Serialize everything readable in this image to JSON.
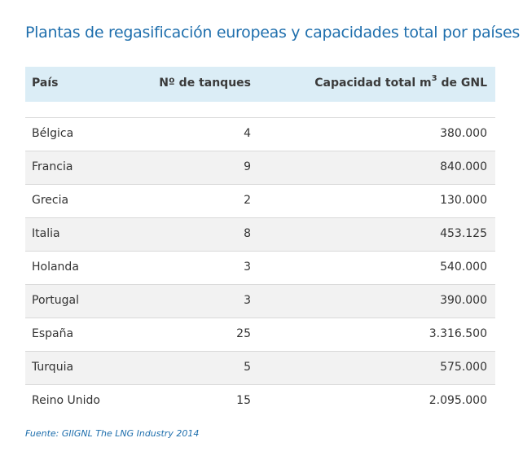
{
  "title": "Plantas de regasificación europeas y capacidades total por países",
  "header": {
    "country": "País",
    "tanks": "Nº de tanques",
    "capacity_prefix": "Capacidad total m",
    "capacity_sup": "3",
    "capacity_suffix": " de GNL"
  },
  "rows": [
    {
      "country": "Bélgica",
      "tanks": "4",
      "capacity": "380.000"
    },
    {
      "country": "Francia",
      "tanks": "9",
      "capacity": "840.000"
    },
    {
      "country": "Grecia",
      "tanks": "2",
      "capacity": "130.000"
    },
    {
      "country": "Italia",
      "tanks": "8",
      "capacity": "453.125"
    },
    {
      "country": "Holanda",
      "tanks": "3",
      "capacity": "540.000"
    },
    {
      "country": "Portugal",
      "tanks": "3",
      "capacity": "390.000"
    },
    {
      "country": "España",
      "tanks": "25",
      "capacity": "3.316.500"
    },
    {
      "country": "Turquia",
      "tanks": "5",
      "capacity": "575.000"
    },
    {
      "country": "Reino Unido",
      "tanks": "15",
      "capacity": "2.095.000"
    }
  ],
  "source": "Fuente: GIIGNL The LNG Industry 2014",
  "colors": {
    "title": "#1f6fad",
    "header_bg": "#dbedf6",
    "row_alt_bg": "#f2f2f2",
    "divider": "#d9d9d9"
  }
}
